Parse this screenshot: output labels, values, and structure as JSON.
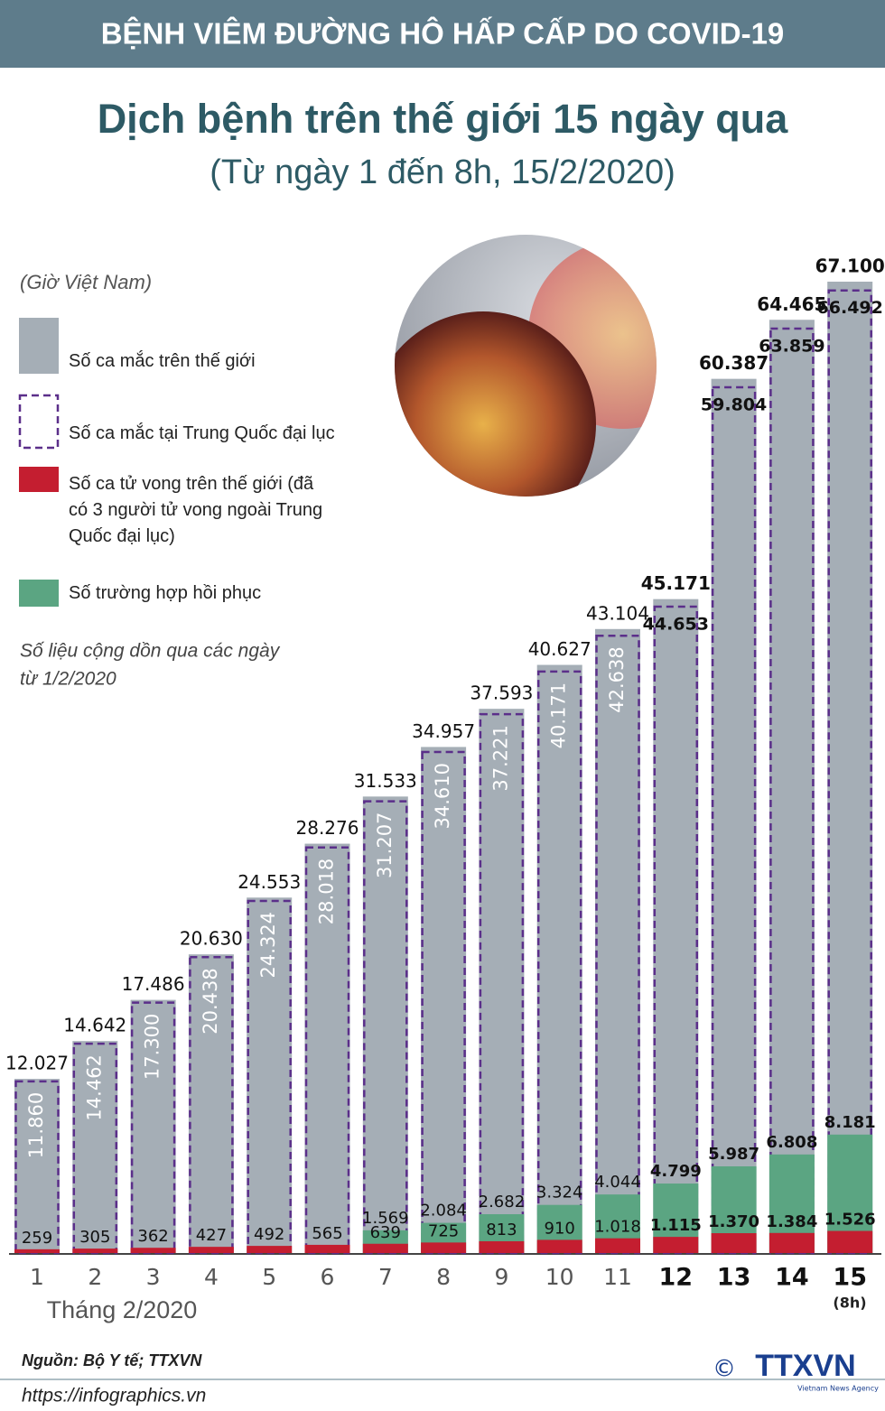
{
  "header": "BỆNH VIÊM ĐƯỜNG HÔ HẤP CẤP DO COVID-19",
  "chart_data": {
    "type": "bar",
    "title": "Dịch bệnh trên thế giới 15 ngày qua",
    "subtitle": "(Từ ngày 1 đến 8h, 15/2/2020)",
    "note_timezone": "(Giờ Việt Nam)",
    "note_cumulative": [
      "Số liệu cộng dồn qua các ngày",
      "từ 1/2/2020"
    ],
    "x_label": "Tháng 2/2020",
    "x_note": "(8h)",
    "categories": [
      "1",
      "2",
      "3",
      "4",
      "5",
      "6",
      "7",
      "8",
      "9",
      "10",
      "11",
      "12",
      "13",
      "14",
      "15"
    ],
    "series": [
      {
        "name": "Số ca mắc trên thế giới",
        "color": "#a5aeb6",
        "values": [
          12027,
          14642,
          17486,
          20630,
          24553,
          28276,
          31533,
          34957,
          37593,
          40627,
          43104,
          45171,
          60387,
          64465,
          67100
        ],
        "value_labels": [
          "12.027",
          "14.642",
          "17.486",
          "20.630",
          "24.553",
          "28.276",
          "31.533",
          "34.957",
          "37.593",
          "40.627",
          "43.104",
          "45.171",
          "60.387",
          "64.465",
          "67.100"
        ]
      },
      {
        "name": "Số ca mắc tại Trung Quốc đại lục",
        "color": "#5b2f8a",
        "values": [
          11860,
          14462,
          17300,
          20438,
          24324,
          28018,
          31207,
          34610,
          37221,
          40171,
          42638,
          44653,
          59804,
          63859,
          66492
        ],
        "value_labels": [
          "11.860",
          "14.462",
          "17.300",
          "20.438",
          "24.324",
          "28.018",
          "31.207",
          "34.610",
          "37.221",
          "40.171",
          "42.638",
          "44.653",
          "59.804",
          "63.859",
          "66.492"
        ]
      },
      {
        "name": "Số ca tử vong trên thế giới (đã có 3 người tử vong ngoài Trung Quốc đại lục)",
        "color": "#c41e30",
        "values": [
          259,
          305,
          362,
          427,
          492,
          565,
          639,
          725,
          813,
          910,
          1018,
          1115,
          1370,
          1384,
          1526
        ],
        "value_labels": [
          "259",
          "305",
          "362",
          "427",
          "492",
          "565",
          "639",
          "725",
          "813",
          "910",
          "1.018",
          "1.115",
          "1.370",
          "1.384",
          "1.526"
        ]
      },
      {
        "name": "Số trường hợp hồi phục",
        "color": "#5ba582",
        "values": [
          null,
          null,
          null,
          null,
          null,
          null,
          1569,
          2084,
          2682,
          3324,
          4044,
          4799,
          5987,
          6808,
          8181
        ],
        "value_labels": [
          null,
          null,
          null,
          null,
          null,
          null,
          "1.569",
          "2.084",
          "2.682",
          "3.324",
          "4.044",
          "4.799",
          "5.987",
          "6.808",
          "8.181"
        ]
      }
    ]
  },
  "footer": {
    "source": "Nguồn: Bộ Y tế; TTXVN",
    "url": "https://infographics.vn",
    "copyright": "©",
    "logo": "TTXVN",
    "agency": "Vietnam News Agency"
  }
}
